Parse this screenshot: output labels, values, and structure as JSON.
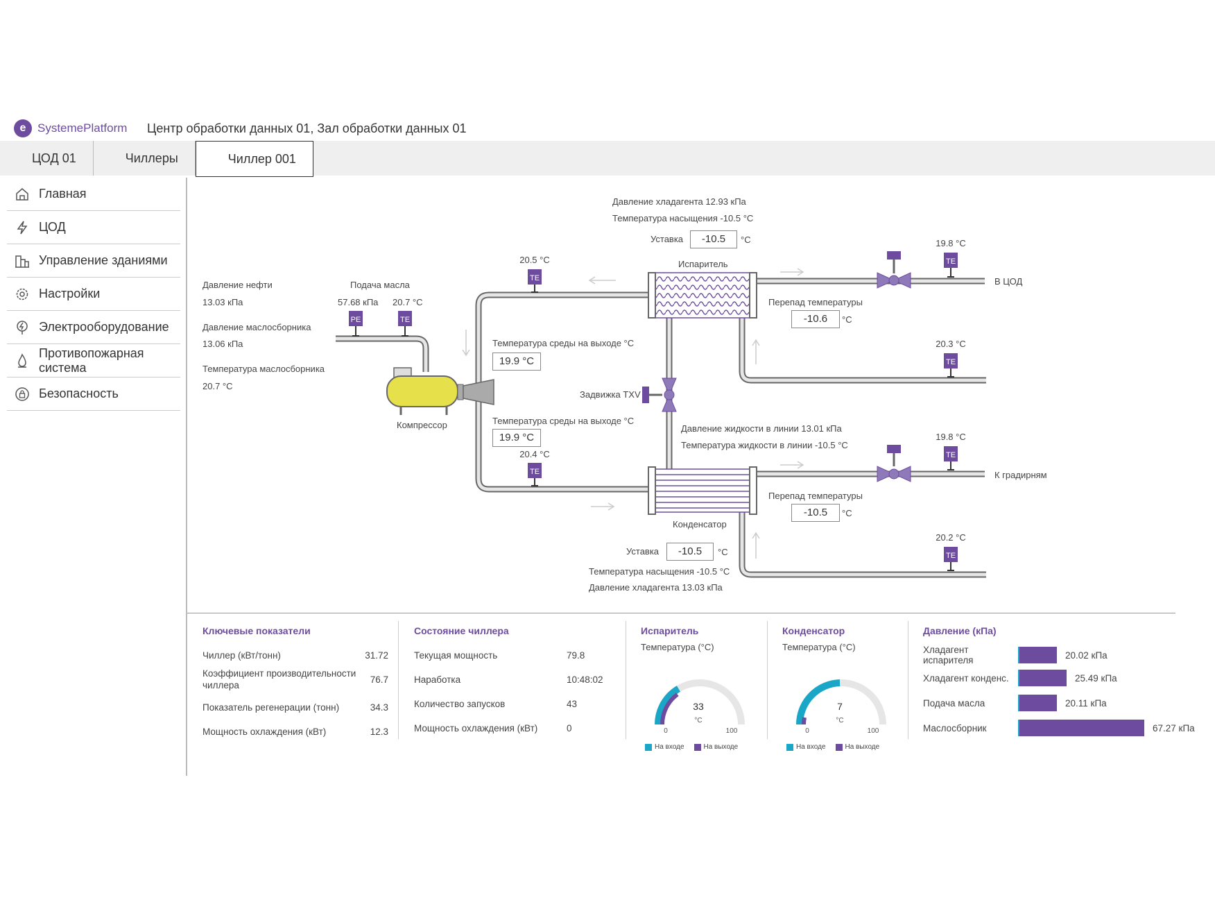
{
  "app": {
    "logo": "e",
    "brand": "SystemePlatform",
    "title": "Центр обработки данных 01, Зал обработки данных 01"
  },
  "breadcrumbs": [
    "ЦОД 01",
    "Чиллеры",
    "Чиллер 001"
  ],
  "sidebar": {
    "items": [
      {
        "label": "Главная",
        "icon": "home-icon"
      },
      {
        "label": "ЦОД",
        "icon": "lightning-icon"
      },
      {
        "label": "Управление зданиями",
        "icon": "buildings-icon"
      },
      {
        "label": "Настройки",
        "icon": "gear-icon"
      },
      {
        "label": "Электрооборудование",
        "icon": "power-icon"
      },
      {
        "label": "Противопожарная система",
        "icon": "flame-icon"
      },
      {
        "label": "Безопасность",
        "icon": "lock-icon"
      }
    ]
  },
  "diagram": {
    "evap_top": {
      "pressure": "Давление хладагента 12.93 кПа",
      "sat_temp": "Температура насыщения -10.5 °C",
      "setpoint_label": "Уставка",
      "setpoint": "-10.5",
      "unit": "°C"
    },
    "evaporator_label": "Испаритель",
    "condenser_label": "Конденсатор",
    "compressor_label": "Компрессор",
    "oil": {
      "oil_pressure_label": "Давление нефти",
      "oil_pressure": "13.03 кПа",
      "sump_pressure_label": "Давление маслосборника",
      "sump_pressure": "13.06 кПа",
      "sump_temp_label": "Температура маслосборника",
      "sump_temp": "20.7 °C",
      "feed_label": "Подача масла",
      "feed_pressure": "57.68 кПа",
      "feed_temp": "20.7 °C"
    },
    "sensors": {
      "te1": "20.5 °C",
      "te_evap_out": "19.8 °C",
      "te_evap_ret": "20.3 °C",
      "te_cond_out": "19.8 °C",
      "te_cond_ret": "20.2 °C",
      "te_lower": "20.4 °C",
      "pe_tag": "PE",
      "te_tag": "TE"
    },
    "media_out_1": {
      "label": "Температура среды на выходе °C",
      "value": "19.9 °C"
    },
    "media_out_2": {
      "label": "Температура среды на выходе °C",
      "value": "19.9 °C"
    },
    "txv_label": "Задвижка TXV",
    "liquid": {
      "pressure": "Давление жидкости в линии 13.01 кПа",
      "temp": "Температура жидкости в линии -10.5 °C"
    },
    "evap_delta": {
      "label": "Перепад температуры",
      "value": "-10.6",
      "unit": "°C"
    },
    "cond_delta": {
      "label": "Перепад температуры",
      "value": "-10.5",
      "unit": "°C"
    },
    "to_dc": "В ЦОД",
    "to_tower": "К градирням",
    "cond_bottom": {
      "setpoint_label": "Уставка",
      "setpoint": "-10.5",
      "unit": "°C",
      "sat_temp": "Температура насыщения -10.5 °C",
      "pressure": "Давление хладагента 13.03 кПа"
    }
  },
  "kpi": {
    "title": "Ключевые показатели",
    "rows": [
      {
        "label": "Чиллер (кВт/тонн)",
        "value": "31.72"
      },
      {
        "label": "Коэффициент производительности чиллера",
        "value": "76.7"
      },
      {
        "label": "Показатель регенерации (тонн)",
        "value": "34.3"
      },
      {
        "label": "Мощность охлаждения (кВт)",
        "value": "12.3"
      }
    ]
  },
  "state": {
    "title": "Состояние чиллера",
    "rows": [
      {
        "label": "Текущая мощность",
        "value": "79.8"
      },
      {
        "label": "Наработка",
        "value": "10:48:02"
      },
      {
        "label": "Количество запусков",
        "value": "43"
      },
      {
        "label": "Мощность охлаждения (кВт)",
        "value": "0"
      }
    ]
  },
  "evap_gauge": {
    "title": "Испаритель",
    "subtitle": "Температура (°C)",
    "value": "33",
    "value_num": 33,
    "unit": "°C",
    "min": "0",
    "max": "100",
    "legend_in": "На входе",
    "legend_out": "На выходе"
  },
  "cond_gauge": {
    "title": "Конденсатор",
    "subtitle": "Температура (°C)",
    "value": "7",
    "value_num": 7,
    "unit": "°C",
    "min": "0",
    "max": "100",
    "legend_in": "На входе",
    "legend_out": "На выходе"
  },
  "colors": {
    "accent": "#6d4c9f",
    "inlet": "#1aa7c7",
    "compressor": "#e6e04a"
  },
  "pressure": {
    "title": "Давление (кПа)",
    "rows": [
      {
        "label": "Хладагент испарителя",
        "value": "20.02 кПа",
        "num": 20.02
      },
      {
        "label": "Хладагент конденс.",
        "value": "25.49 кПа",
        "num": 25.49
      },
      {
        "label": "Подача масла",
        "value": "20.11 кПа",
        "num": 20.11
      },
      {
        "label": "Маслосборник",
        "value": "67.27 кПа",
        "num": 67.27
      }
    ]
  }
}
